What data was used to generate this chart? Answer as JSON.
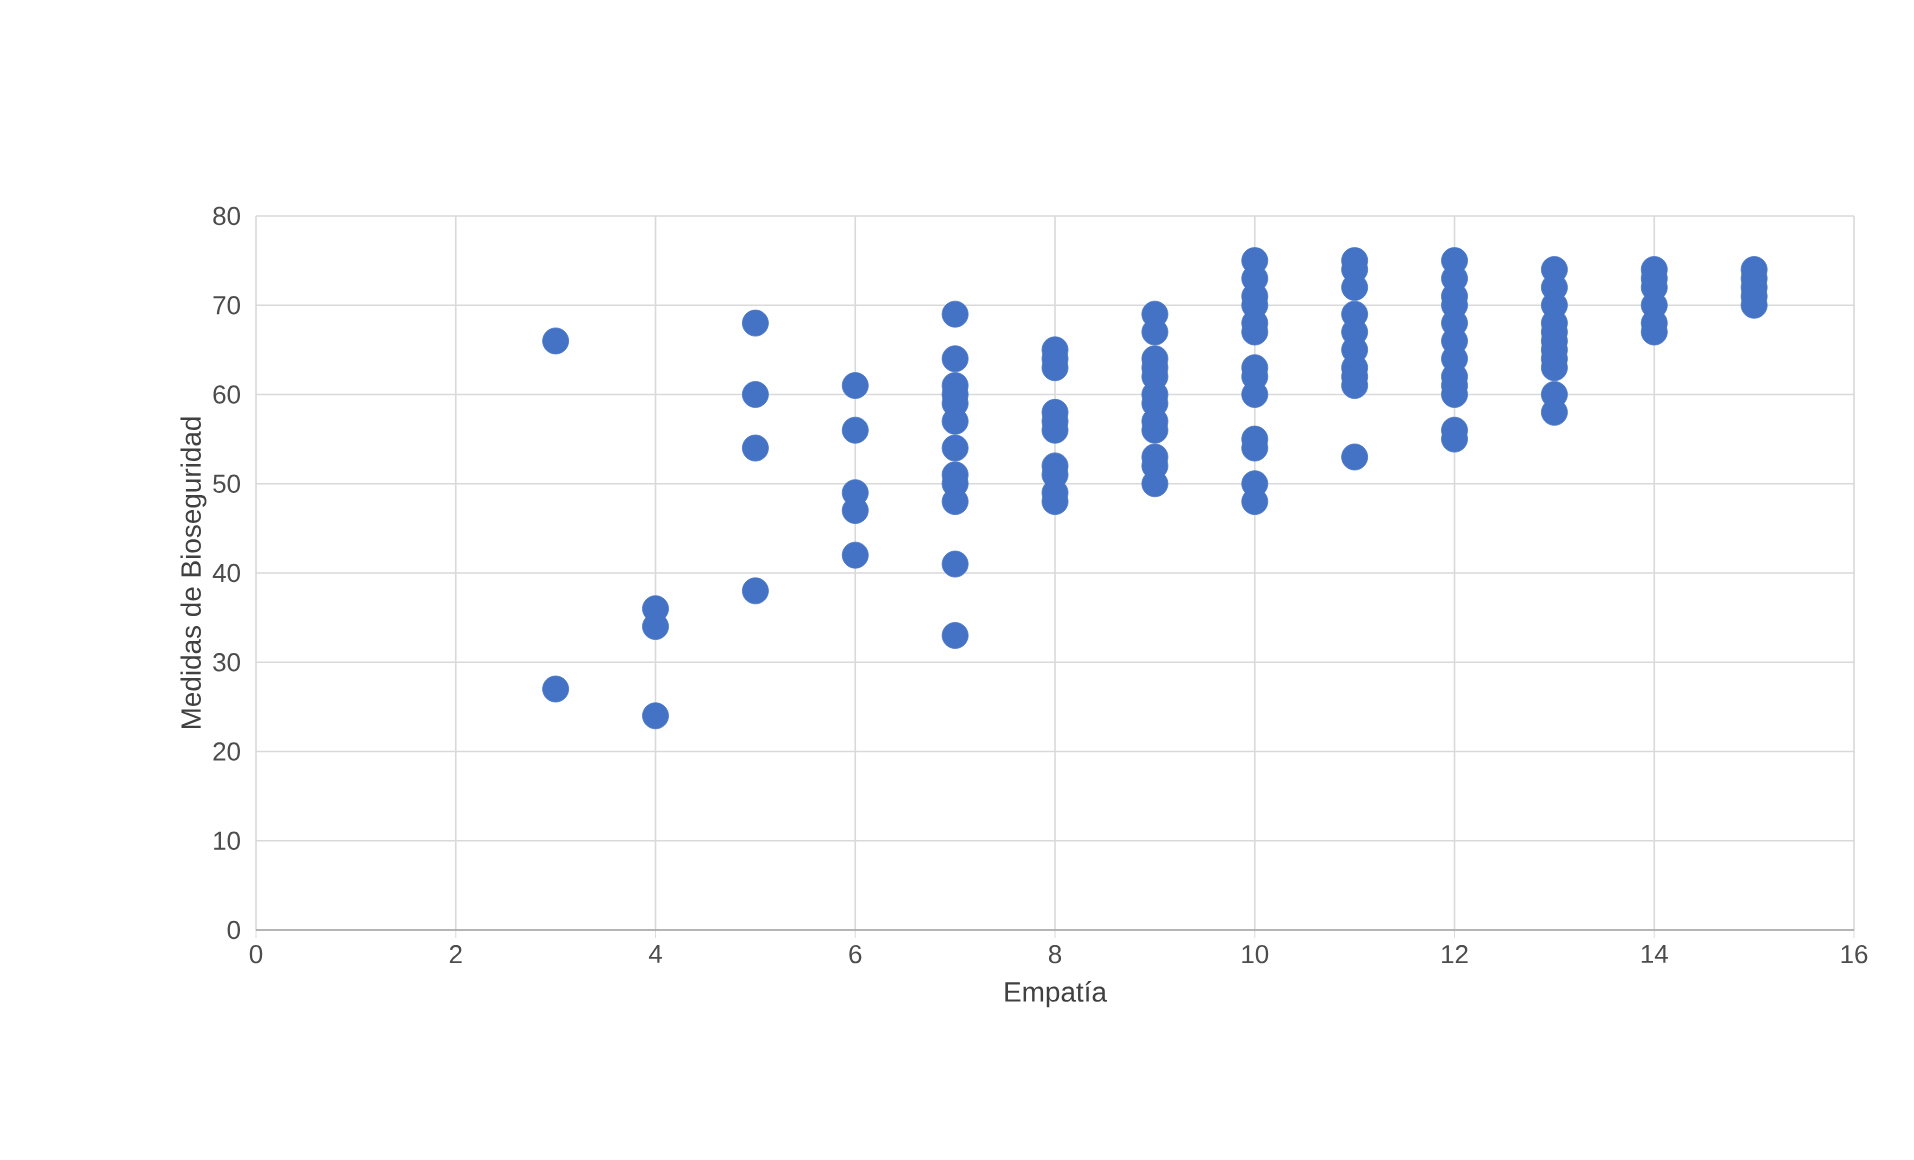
{
  "chart_data": {
    "type": "scatter",
    "xlabel": "Empatía",
    "ylabel": "Medidas de Bioseguridad",
    "xlim": [
      0,
      16
    ],
    "xticks": [
      0,
      2,
      4,
      6,
      8,
      10,
      12,
      14,
      16
    ],
    "ylim": [
      0,
      80
    ],
    "yticks": [
      0,
      10,
      20,
      30,
      40,
      50,
      60,
      70,
      80
    ],
    "grid": true,
    "marker": "circle",
    "series": [
      {
        "color": "#4472c4",
        "x": [
          3,
          3,
          4,
          4,
          4,
          5,
          5,
          5,
          5,
          6,
          6,
          6,
          6,
          6,
          7,
          7,
          7,
          7,
          7,
          7,
          7,
          7,
          7,
          7,
          7,
          7,
          8,
          8,
          8,
          8,
          8,
          8,
          8,
          8,
          8,
          8,
          9,
          9,
          9,
          9,
          9,
          9,
          9,
          9,
          9,
          9,
          9,
          9,
          10,
          10,
          10,
          10,
          10,
          10,
          10,
          10,
          10,
          10,
          10,
          10,
          10,
          11,
          11,
          11,
          11,
          11,
          11,
          11,
          11,
          11,
          11,
          12,
          12,
          12,
          12,
          12,
          12,
          12,
          12,
          12,
          12,
          12,
          12,
          13,
          13,
          13,
          13,
          13,
          13,
          13,
          13,
          13,
          13,
          13,
          14,
          14,
          14,
          14,
          14,
          14,
          15,
          15,
          15,
          15,
          15
        ],
        "values": [
          66,
          27,
          36,
          34,
          24,
          68,
          60,
          54,
          38,
          61,
          56,
          49,
          47,
          42,
          69,
          64,
          61,
          60,
          59,
          57,
          54,
          51,
          50,
          48,
          41,
          33,
          65,
          64,
          63,
          58,
          57,
          56,
          52,
          51,
          49,
          48,
          69,
          67,
          64,
          63,
          62,
          60,
          59,
          57,
          56,
          53,
          52,
          50,
          75,
          73,
          71,
          70,
          68,
          67,
          63,
          62,
          60,
          55,
          54,
          50,
          48,
          75,
          74,
          72,
          69,
          67,
          65,
          63,
          62,
          61,
          53,
          75,
          73,
          71,
          70,
          68,
          66,
          64,
          62,
          61,
          60,
          56,
          55,
          74,
          72,
          70,
          68,
          67,
          66,
          65,
          64,
          63,
          60,
          58,
          74,
          73,
          72,
          70,
          68,
          67,
          74,
          73,
          72,
          71,
          70
        ]
      }
    ]
  }
}
